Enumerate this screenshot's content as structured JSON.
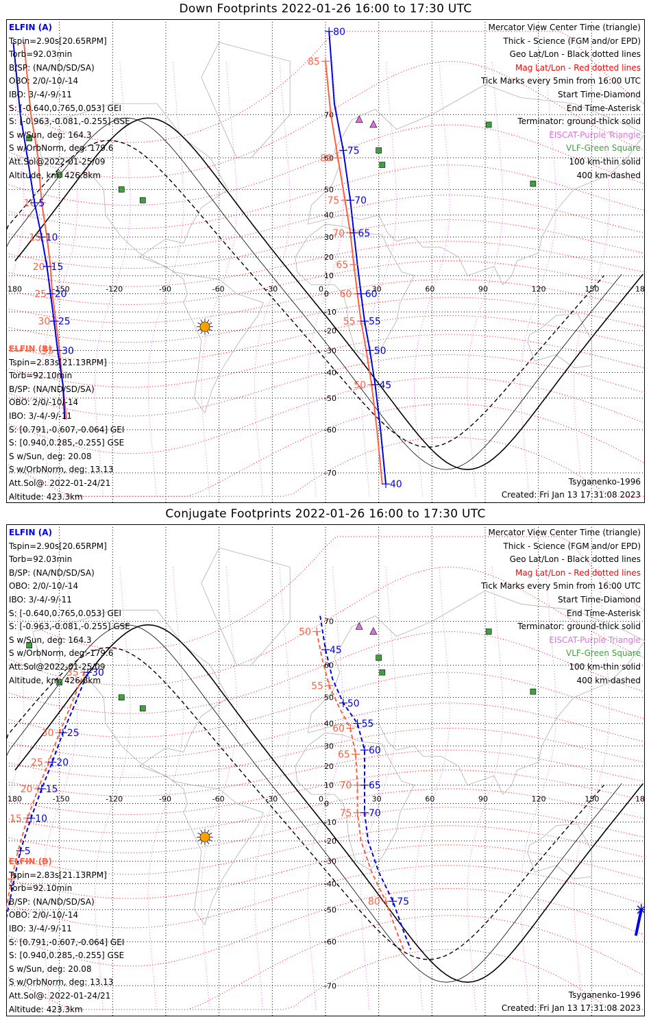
{
  "panels": [
    {
      "title": "Down Footprints 2022-01-26 16:00 to 17:30 UTC",
      "elfin_a": {
        "name": "ELFIN (A)",
        "lines": [
          "Tspin=2.90s[20.65RPM]",
          "Torb=92.03min",
          "B/SP: (NA/ND/SD/SA)",
          "OBO: 2/0/-10/-14",
          "IBO: 3/-4/-9/-11",
          "S: [-0.640,0.765,0.053] GEI",
          "S: [-0.963,-0.081,-0.255] GSE",
          "S w/Sun, deg: 164.3",
          "S w/OrbNorm, deg: 179.6",
          "Att.Sol@2022-01-25/09",
          "Altitude, km: 426.8km"
        ]
      },
      "elfin_b": {
        "name": "ELFIN (B)",
        "lines": [
          "Tspin=2.83s[21.13RPM]",
          "Torb=92.10min",
          "B/SP: (NA/ND/SD/SA)",
          "OBO: 2/0/-10/-14",
          "IBO: 3/-4/-9/-11",
          "S: [0.791,-0.607,-0.064] GEI",
          "S: [0.940,0.285,-0.255] GSE",
          "S w/Sun, deg: 20.08",
          "S w/OrbNorm, deg: 13.13",
          "Att.Sol@: 2022-01-24/21",
          "Altitude: 423.3km"
        ]
      },
      "legend": [
        {
          "text": "Mercator View Center Time (triangle)",
          "color": "black"
        },
        {
          "text": "Thick - Science (FGM and/or EPD)",
          "color": "black"
        },
        {
          "text": "Geo Lat/Lon - Black dotted lines",
          "color": "black"
        },
        {
          "text": "Mag Lat/Lon - Red dotted lines",
          "color": "red"
        },
        {
          "text": "Tick Marks every 5min from 16:00 UTC",
          "color": "black"
        },
        {
          "text": "Start Time-Diamond",
          "color": "black"
        },
        {
          "text": "End Time-Asterisk",
          "color": "black"
        },
        {
          "text": "Terminator: ground-thick solid",
          "color": "black"
        },
        {
          "text": "EISCAT-Purple Triangle",
          "color": "purple"
        },
        {
          "text": "VLF-Green Square",
          "color": "green"
        },
        {
          "text": "100 km-thin solid",
          "color": "black"
        },
        {
          "text": "400 km-dashed",
          "color": "black"
        }
      ],
      "model": "Tsyganenko-1996",
      "created": "Created: Fri Jan 13 17:31:08 2023"
    },
    {
      "title": "Conjugate Footprints 2022-01-26 16:00 to 17:30 UTC",
      "elfin_a": {
        "name": "ELFIN (A)",
        "lines": [
          "Tspin=2.90s[20.65RPM]",
          "Torb=92.03min",
          "B/SP: (NA/ND/SD/SA)",
          "OBO: 2/0/-10/-14",
          "IBO: 3/-4/-9/-11",
          "S: [-0.640,0.765,0.053] GEI",
          "S: [-0.963,-0.081,-0.255] GSE",
          "S w/Sun, deg: 164.3",
          "S w/OrbNorm, deg: 179.6",
          "Att.Sol@2022-01-25/09",
          "Altitude, km: 426.8km"
        ]
      },
      "elfin_b": {
        "name": "ELFIN (B)",
        "lines": [
          "Tspin=2.83s[21.13RPM]",
          "Torb=92.10min",
          "B/SP: (NA/ND/SD/SA)",
          "OBO: 2/0/-10/-14",
          "IBO: 3/-4/-9/-11",
          "S: [0.791,-0.607,-0.064] GEI",
          "S: [0.940,0.285,-0.255] GSE",
          "S w/Sun, deg: 20.08",
          "S w/OrbNorm, deg: 13.13",
          "Att.Sol@: 2022-01-24/21",
          "Altitude: 423.3km"
        ]
      },
      "legend": [
        {
          "text": "Mercator View Center Time (triangle)",
          "color": "black"
        },
        {
          "text": "Thick - Science (FGM and/or EPD)",
          "color": "black"
        },
        {
          "text": "Geo Lat/Lon - Black dotted lines",
          "color": "black"
        },
        {
          "text": "Mag Lat/Lon - Red dotted lines",
          "color": "red"
        },
        {
          "text": "Tick Marks every 5min from 16:00 UTC",
          "color": "black"
        },
        {
          "text": "Start Time-Diamond",
          "color": "black"
        },
        {
          "text": "End Time-Asterisk",
          "color": "black"
        },
        {
          "text": "Terminator: ground-thick solid",
          "color": "black"
        },
        {
          "text": "EISCAT-Purple Triangle",
          "color": "purple"
        },
        {
          "text": "VLF-Green Square",
          "color": "green"
        },
        {
          "text": "100 km-thin solid",
          "color": "black"
        },
        {
          "text": "400 km-dashed",
          "color": "black"
        }
      ],
      "model": "Tsyganenko-1996",
      "created": "Created: Fri Jan 13 17:31:08 2023"
    }
  ],
  "axes": {
    "lon_ticks": [
      "180",
      "-150",
      "-120",
      "-90",
      "-60",
      "-30",
      "0",
      "30",
      "60",
      "90",
      "120",
      "150",
      "180"
    ],
    "lat_ticks": [
      "-70",
      "-60",
      "-50",
      "-40",
      "-30",
      "-20",
      "-10",
      "0",
      "10",
      "20",
      "30",
      "40",
      "50",
      "60",
      "70"
    ],
    "lon_range": [
      -180,
      180
    ],
    "lat_range": [
      -75,
      82
    ]
  },
  "colors": {
    "elfin_a": "#0000e6",
    "elfin_b": "#ff6040",
    "mag_grid": "#ff0000",
    "geo_grid": "#000000",
    "eiscat": "#e070e0",
    "vlf": "#40a040",
    "sun": "#ffa000"
  },
  "markers": {
    "eiscat": [
      [
        19,
        69
      ],
      [
        27,
        68
      ]
    ],
    "vlf": [
      [
        -167,
        65
      ],
      [
        -150,
        55
      ],
      [
        -115,
        50
      ],
      [
        -103,
        46
      ],
      [
        30,
        62
      ],
      [
        32,
        58
      ],
      [
        92,
        68
      ],
      [
        117,
        52
      ]
    ],
    "subsolar": [
      -68,
      -18
    ]
  },
  "tracks": [
    {
      "a_path": [
        [
          -176,
          80
        ],
        [
          -172,
          70
        ],
        [
          -168,
          60
        ],
        [
          -164,
          45
        ],
        [
          -160,
          30
        ],
        [
          -157,
          15
        ],
        [
          -155,
          0
        ],
        [
          -153,
          -15
        ],
        [
          -151,
          -30
        ],
        [
          -148,
          -45
        ],
        [
          -147,
          -57
        ]
      ],
      "a_ticks": [
        {
          "ll": [
            -164,
            45
          ],
          "label": "5"
        },
        {
          "ll": [
            -160,
            30
          ],
          "label": "10"
        },
        {
          "ll": [
            -157,
            15
          ],
          "label": "15"
        },
        {
          "ll": [
            -155,
            0
          ],
          "label": "20"
        },
        {
          "ll": [
            -153,
            -15
          ],
          "label": "25"
        },
        {
          "ll": [
            -151,
            -30
          ],
          "label": "30"
        }
      ],
      "b_path": [
        [
          -170,
          80
        ],
        [
          -166,
          70
        ],
        [
          -162,
          60
        ],
        [
          -160,
          45
        ],
        [
          -157,
          30
        ],
        [
          -155,
          15
        ],
        [
          -154,
          0
        ],
        [
          -152,
          -15
        ],
        [
          -150,
          -30
        ],
        [
          -148,
          -45
        ],
        [
          -146,
          -57
        ]
      ],
      "b_ticks": [
        {
          "ll": [
            -160,
            45
          ],
          "label": "10"
        },
        {
          "ll": [
            -157,
            30
          ],
          "label": "15"
        },
        {
          "ll": [
            -155,
            15
          ],
          "label": "20"
        },
        {
          "ll": [
            -154,
            0
          ],
          "label": "25"
        },
        {
          "ll": [
            -152,
            -15
          ],
          "label": "30"
        },
        {
          "ll": [
            -150,
            -30
          ],
          "label": "35"
        }
      ],
      "a2_path": [
        [
          2,
          81
        ],
        [
          5,
          72
        ],
        [
          10,
          62
        ],
        [
          14,
          46
        ],
        [
          16,
          32
        ],
        [
          18,
          16
        ],
        [
          20,
          0
        ],
        [
          22,
          -15
        ],
        [
          25,
          -30
        ],
        [
          28,
          -45
        ],
        [
          31,
          -60
        ],
        [
          34,
          -72
        ]
      ],
      "a2_ticks": [
        {
          "ll": [
            2,
            81
          ],
          "label": "80"
        },
        {
          "ll": [
            10,
            62
          ],
          "label": "75"
        },
        {
          "ll": [
            14,
            46
          ],
          "label": "70"
        },
        {
          "ll": [
            16,
            32
          ],
          "label": "65"
        },
        {
          "ll": [
            20,
            0
          ],
          "label": "60"
        },
        {
          "ll": [
            22,
            -15
          ],
          "label": "55"
        },
        {
          "ll": [
            25,
            -30
          ],
          "label": "50"
        },
        {
          "ll": [
            28,
            -45
          ],
          "label": "45"
        },
        {
          "ll": [
            34,
            -72
          ],
          "label": "40"
        }
      ],
      "b2_path": [
        [
          0,
          78
        ],
        [
          3,
          70
        ],
        [
          7,
          60
        ],
        [
          11,
          46
        ],
        [
          14,
          32
        ],
        [
          16,
          16
        ],
        [
          18,
          0
        ],
        [
          20,
          -15
        ],
        [
          23,
          -30
        ],
        [
          26,
          -45
        ],
        [
          29,
          -60
        ],
        [
          32,
          -72
        ]
      ],
      "b2_ticks": [
        {
          "ll": [
            0,
            78
          ],
          "label": "85"
        },
        {
          "ll": [
            7,
            60
          ],
          "label": "80"
        },
        {
          "ll": [
            11,
            46
          ],
          "label": "75"
        },
        {
          "ll": [
            14,
            32
          ],
          "label": "70"
        },
        {
          "ll": [
            16,
            16
          ],
          "label": "65"
        },
        {
          "ll": [
            18,
            0
          ],
          "label": "60"
        },
        {
          "ll": [
            20,
            -15
          ],
          "label": "55"
        },
        {
          "ll": [
            26,
            -45
          ],
          "label": "50"
        }
      ],
      "dashed": false
    },
    {
      "a_path": [
        [
          -180,
          -53
        ],
        [
          -176,
          -40
        ],
        [
          -172,
          -25
        ],
        [
          -166,
          -8
        ],
        [
          -160,
          8
        ],
        [
          -154,
          22
        ],
        [
          -148,
          36
        ],
        [
          -141,
          48
        ],
        [
          -134,
          58
        ]
      ],
      "a_ticks": [
        {
          "ll": [
            -172,
            -25
          ],
          "label": "5"
        },
        {
          "ll": [
            -166,
            -8
          ],
          "label": "10"
        },
        {
          "ll": [
            -160,
            8
          ],
          "label": "15"
        },
        {
          "ll": [
            -154,
            22
          ],
          "label": "20"
        },
        {
          "ll": [
            -148,
            36
          ],
          "label": "25"
        },
        {
          "ll": [
            -134,
            58
          ],
          "label": "30"
        }
      ],
      "b_path": [
        [
          -180,
          -50
        ],
        [
          -177,
          -38
        ],
        [
          -173,
          -24
        ],
        [
          -168,
          -8
        ],
        [
          -162,
          8
        ],
        [
          -156,
          22
        ],
        [
          -150,
          36
        ],
        [
          -143,
          48
        ],
        [
          -136,
          58
        ]
      ],
      "b_ticks": [
        {
          "ll": [
            -177,
            -38
          ],
          "label": "10"
        },
        {
          "ll": [
            -168,
            -8
          ],
          "label": "15"
        },
        {
          "ll": [
            -162,
            8
          ],
          "label": "20"
        },
        {
          "ll": [
            -156,
            22
          ],
          "label": "25"
        },
        {
          "ll": [
            -150,
            36
          ],
          "label": "30"
        },
        {
          "ll": [
            -136,
            58
          ],
          "label": "35"
        }
      ],
      "a2_path": [
        [
          -3,
          71
        ],
        [
          0,
          64
        ],
        [
          4,
          56
        ],
        [
          10,
          48
        ],
        [
          18,
          40
        ],
        [
          22,
          28
        ],
        [
          22,
          10
        ],
        [
          22,
          -5
        ],
        [
          24,
          -20
        ],
        [
          30,
          -35
        ],
        [
          38,
          -47
        ],
        [
          44,
          -57
        ],
        [
          48,
          -62
        ]
      ],
      "a2_ticks": [
        {
          "ll": [
            0,
            64
          ],
          "label": "45"
        },
        {
          "ll": [
            10,
            48
          ],
          "label": "50"
        },
        {
          "ll": [
            18,
            40
          ],
          "label": "55"
        },
        {
          "ll": [
            22,
            28
          ],
          "label": "60"
        },
        {
          "ll": [
            22,
            10
          ],
          "label": "65"
        },
        {
          "ll": [
            22,
            -5
          ],
          "label": "70"
        },
        {
          "ll": [
            38,
            -47
          ],
          "label": "75"
        }
      ],
      "b2_path": [
        [
          -5,
          68
        ],
        [
          -2,
          62
        ],
        [
          2,
          54
        ],
        [
          8,
          46
        ],
        [
          14,
          38
        ],
        [
          17,
          26
        ],
        [
          18,
          10
        ],
        [
          18,
          -5
        ],
        [
          20,
          -20
        ],
        [
          26,
          -35
        ],
        [
          34,
          -47
        ],
        [
          40,
          -57
        ],
        [
          44,
          -62
        ]
      ],
      "b2_ticks": [
        {
          "ll": [
            -5,
            68
          ],
          "label": "50"
        },
        {
          "ll": [
            2,
            54
          ],
          "label": "55"
        },
        {
          "ll": [
            14,
            38
          ],
          "label": "60"
        },
        {
          "ll": [
            17,
            26
          ],
          "label": "65"
        },
        {
          "ll": [
            18,
            10
          ],
          "label": "70"
        },
        {
          "ll": [
            18,
            -5
          ],
          "label": "75"
        },
        {
          "ll": [
            34,
            -47
          ],
          "label": "80"
        }
      ],
      "dashed": true
    }
  ]
}
